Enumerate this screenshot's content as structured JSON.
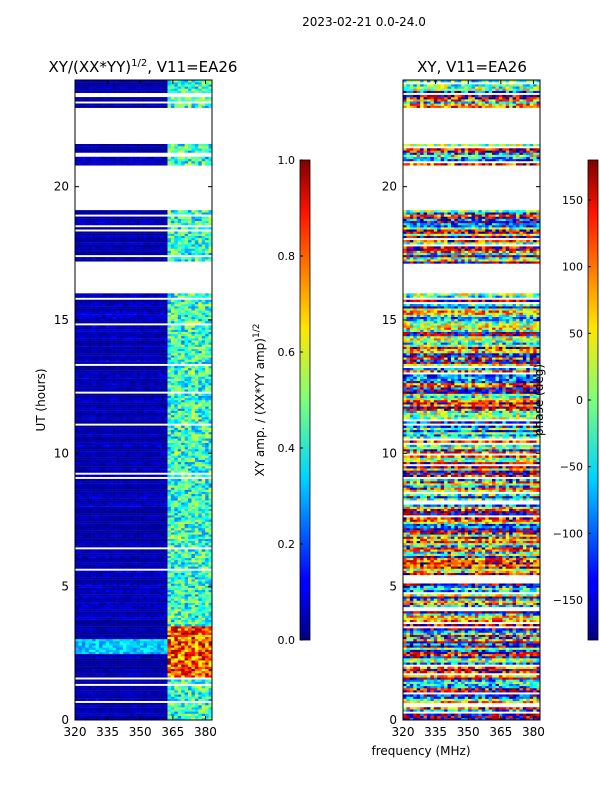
{
  "figure": {
    "suptitle": "2023-02-21 0.0-24.0"
  },
  "chart_data": [
    {
      "type": "heatmap",
      "title": "XY/(XX*YY)",
      "title_exponent": "1/2",
      "title_suffix": ", V11=EA26",
      "xlabel": "",
      "ylabel": "UT (hours)",
      "xlim": [
        320,
        383
      ],
      "ylim": [
        0,
        24
      ],
      "xticks": [
        320,
        335,
        350,
        365,
        380
      ],
      "yticks": [
        0,
        5,
        10,
        15,
        20
      ],
      "colormap": "jet",
      "colorbar": {
        "label": "XY amp. / (XX*YY amp)",
        "label_exponent": "1/2",
        "range": [
          0.0,
          1.0
        ],
        "ticks": [
          0.0,
          0.2,
          0.4,
          0.6,
          0.8,
          1.0
        ],
        "tick_labels": [
          "0.0",
          "0.2",
          "0.4",
          "0.6",
          "0.8",
          "1.0"
        ]
      },
      "data_gaps_hours": [
        [
          16.0,
          17.1
        ],
        [
          19.1,
          20.8
        ],
        [
          21.6,
          23.0
        ]
      ],
      "high_amplitude_band_mhz": [
        361,
        383
      ]
    },
    {
      "type": "heatmap",
      "title": "XY, V11=EA26",
      "xlabel": "frequency (MHz)",
      "ylabel": "",
      "xlim": [
        320,
        383
      ],
      "ylim": [
        0,
        24
      ],
      "xticks": [
        320,
        335,
        350,
        365,
        380
      ],
      "yticks": [
        0,
        5,
        10,
        15,
        20
      ],
      "colormap": "jet",
      "colorbar": {
        "label": "phase (deg)",
        "range": [
          -180,
          180
        ],
        "ticks": [
          -150,
          -100,
          -50,
          0,
          50,
          100,
          150
        ],
        "tick_labels": [
          "−150",
          "−100",
          "−50",
          "0",
          "50",
          "100",
          "150"
        ]
      },
      "data_gaps_hours": [
        [
          16.0,
          17.1
        ],
        [
          19.1,
          20.8
        ],
        [
          21.6,
          23.0
        ]
      ]
    }
  ]
}
